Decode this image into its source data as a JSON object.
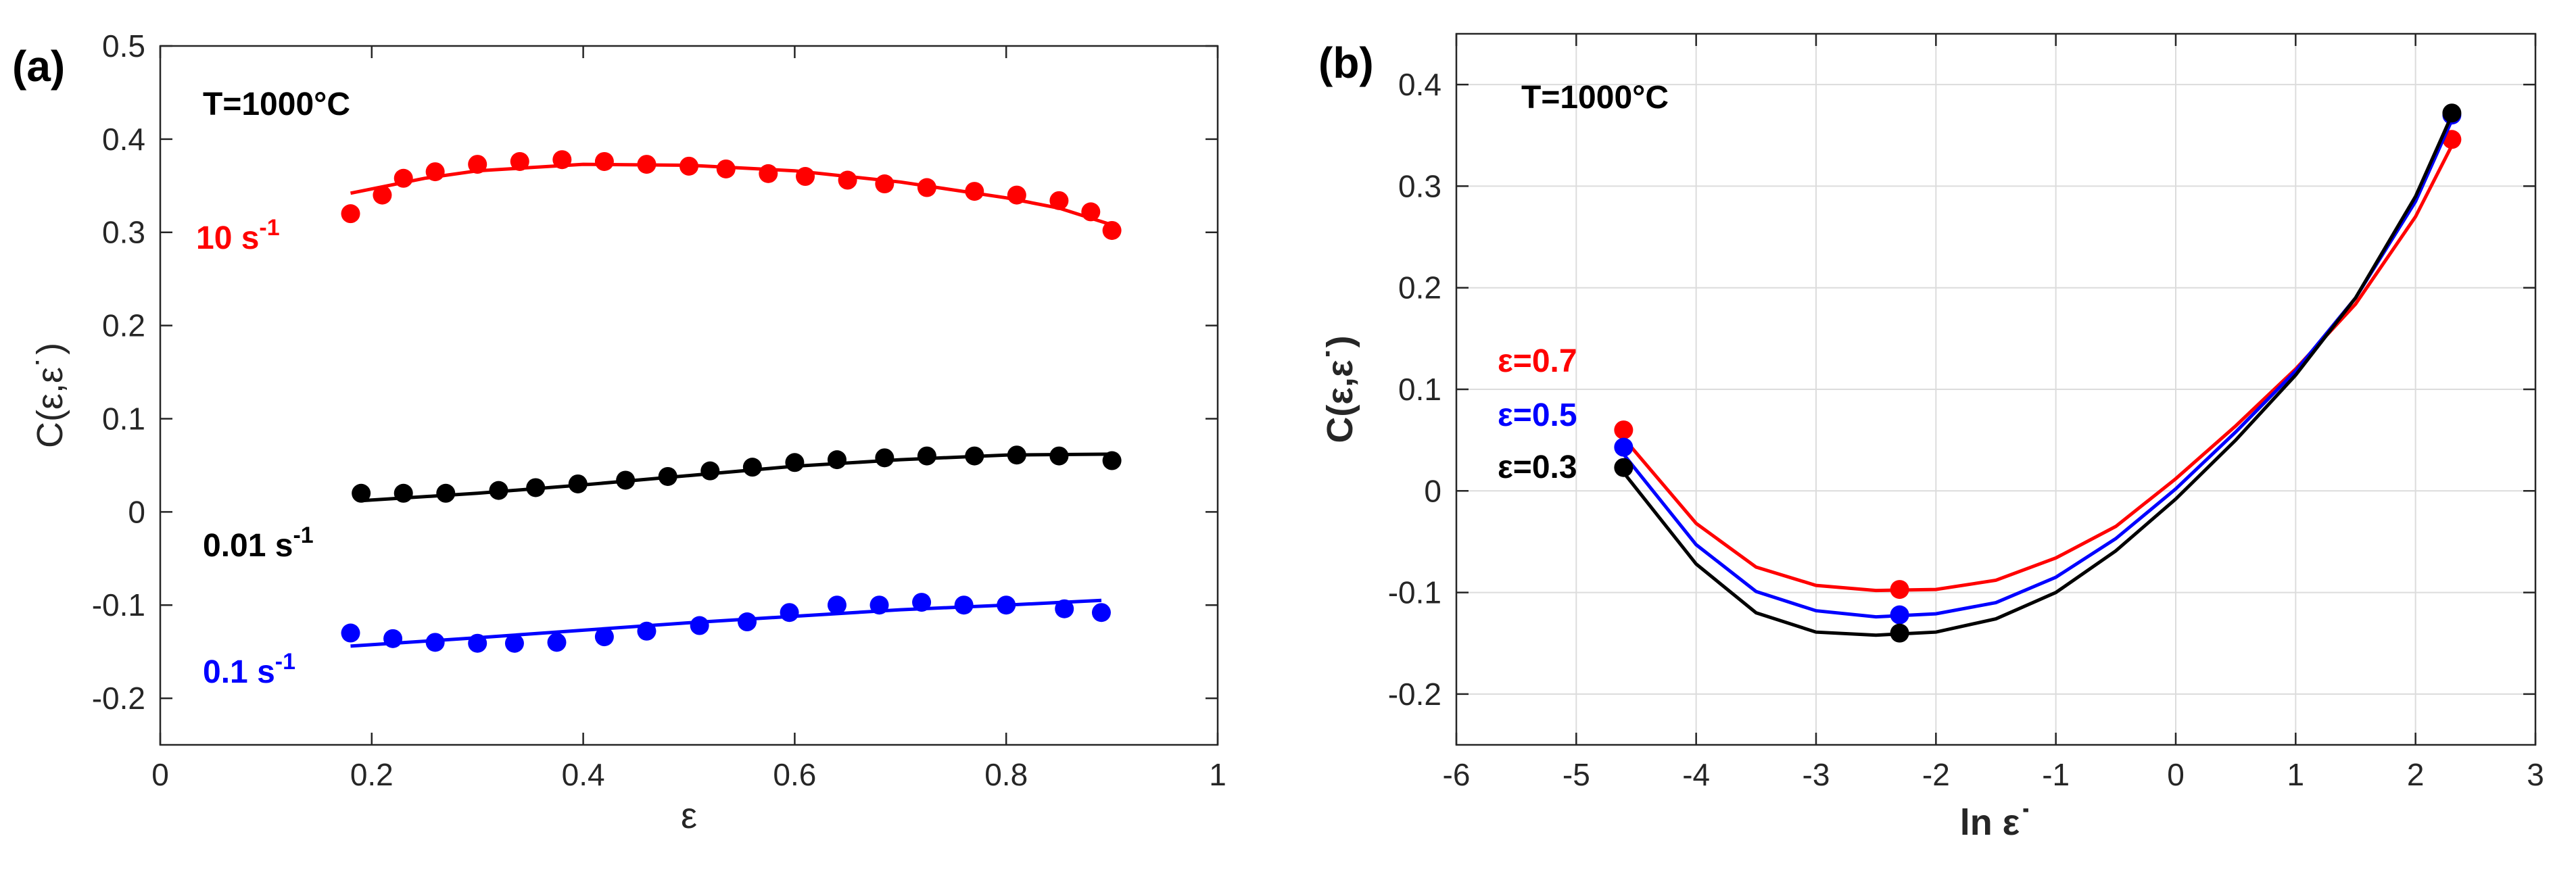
{
  "chart_data": [
    {
      "type": "line",
      "panel_label": "(a)",
      "annotation": "T=1000°C",
      "xlabel": "ε",
      "ylabel": "C(ε,ε˙)",
      "xlim": [
        0,
        1
      ],
      "ylim": [
        -0.25,
        0.5
      ],
      "xticks": [
        "0",
        "0.2",
        "0.4",
        "0.6",
        "0.8",
        "1"
      ],
      "yticks": [
        "-0.2",
        "-0.1",
        "0",
        "0.1",
        "0.2",
        "0.3",
        "0.4",
        "0.5"
      ],
      "grid": false,
      "x": [
        0.18,
        0.22,
        0.24,
        0.26,
        0.3,
        0.34,
        0.38,
        0.42,
        0.46,
        0.5,
        0.54,
        0.58,
        0.62,
        0.66,
        0.7,
        0.74,
        0.78,
        0.82,
        0.86,
        0.88,
        0.9
      ],
      "series": [
        {
          "name": "10 s-1",
          "label_main": "10 s",
          "label_sup": "-1",
          "color": "#ff0000",
          "points": [
            [
              0.18,
              0.32
            ],
            [
              0.21,
              0.34
            ],
            [
              0.23,
              0.358
            ],
            [
              0.26,
              0.365
            ],
            [
              0.3,
              0.373
            ],
            [
              0.34,
              0.376
            ],
            [
              0.38,
              0.378
            ],
            [
              0.42,
              0.376
            ],
            [
              0.46,
              0.373
            ],
            [
              0.5,
              0.371
            ],
            [
              0.535,
              0.368
            ],
            [
              0.575,
              0.363
            ],
            [
              0.61,
              0.36
            ],
            [
              0.65,
              0.356
            ],
            [
              0.685,
              0.352
            ],
            [
              0.725,
              0.348
            ],
            [
              0.77,
              0.344
            ],
            [
              0.81,
              0.34
            ],
            [
              0.85,
              0.334
            ],
            [
              0.88,
              0.322
            ],
            [
              0.9,
              0.302
            ]
          ],
          "fit": [
            [
              0.18,
              0.342
            ],
            [
              0.25,
              0.358
            ],
            [
              0.3,
              0.366
            ],
            [
              0.4,
              0.373
            ],
            [
              0.5,
              0.372
            ],
            [
              0.6,
              0.366
            ],
            [
              0.7,
              0.354
            ],
            [
              0.8,
              0.337
            ],
            [
              0.85,
              0.326
            ],
            [
              0.9,
              0.308
            ]
          ]
        },
        {
          "name": "0.01 s-1",
          "label_main": "0.01 s",
          "label_sup": "-1",
          "color": "#000000",
          "points": [
            [
              0.19,
              0.02
            ],
            [
              0.23,
              0.02
            ],
            [
              0.27,
              0.02
            ],
            [
              0.32,
              0.023
            ],
            [
              0.355,
              0.026
            ],
            [
              0.395,
              0.03
            ],
            [
              0.44,
              0.034
            ],
            [
              0.48,
              0.038
            ],
            [
              0.52,
              0.044
            ],
            [
              0.56,
              0.048
            ],
            [
              0.6,
              0.053
            ],
            [
              0.64,
              0.056
            ],
            [
              0.685,
              0.058
            ],
            [
              0.725,
              0.06
            ],
            [
              0.77,
              0.06
            ],
            [
              0.81,
              0.061
            ],
            [
              0.85,
              0.06
            ],
            [
              0.9,
              0.055
            ]
          ],
          "fit": [
            [
              0.19,
              0.012
            ],
            [
              0.3,
              0.02
            ],
            [
              0.4,
              0.029
            ],
            [
              0.5,
              0.039
            ],
            [
              0.6,
              0.049
            ],
            [
              0.7,
              0.056
            ],
            [
              0.8,
              0.061
            ],
            [
              0.9,
              0.062
            ]
          ]
        },
        {
          "name": "0.1 s-1",
          "label_main": "0.1 s",
          "label_sup": "-1",
          "color": "#0000ff",
          "points": [
            [
              0.18,
              -0.13
            ],
            [
              0.22,
              -0.136
            ],
            [
              0.26,
              -0.14
            ],
            [
              0.3,
              -0.141
            ],
            [
              0.335,
              -0.141
            ],
            [
              0.375,
              -0.14
            ],
            [
              0.42,
              -0.134
            ],
            [
              0.46,
              -0.128
            ],
            [
              0.51,
              -0.122
            ],
            [
              0.555,
              -0.118
            ],
            [
              0.595,
              -0.108
            ],
            [
              0.64,
              -0.1
            ],
            [
              0.68,
              -0.1
            ],
            [
              0.72,
              -0.097
            ],
            [
              0.76,
              -0.1
            ],
            [
              0.8,
              -0.1
            ],
            [
              0.855,
              -0.104
            ],
            [
              0.89,
              -0.108
            ]
          ],
          "fit": [
            [
              0.18,
              -0.144
            ],
            [
              0.3,
              -0.135
            ],
            [
              0.4,
              -0.127
            ],
            [
              0.5,
              -0.119
            ],
            [
              0.6,
              -0.112
            ],
            [
              0.7,
              -0.105
            ],
            [
              0.8,
              -0.1
            ],
            [
              0.89,
              -0.095
            ]
          ]
        }
      ]
    },
    {
      "type": "line",
      "panel_label": "(b)",
      "annotation": "T=1000°C",
      "xlabel": "ln ε˙",
      "ylabel": "C(ε,ε˙)",
      "xlim": [
        -6,
        3
      ],
      "ylim": [
        -0.25,
        0.45
      ],
      "xticks": [
        "-6",
        "-5",
        "-4",
        "-3",
        "-2",
        "-1",
        "0",
        "1",
        "2",
        "3"
      ],
      "yticks": [
        "-0.2",
        "-0.1",
        "0",
        "0.1",
        "0.2",
        "0.3",
        "0.4"
      ],
      "grid": true,
      "series": [
        {
          "name": "ε=0.7",
          "color": "#ff0000",
          "points": [
            [
              -4.605,
              0.06
            ],
            [
              -2.303,
              -0.097
            ],
            [
              2.303,
              0.346
            ]
          ],
          "fit": [
            [
              -4.605,
              0.052
            ],
            [
              -4.0,
              -0.032
            ],
            [
              -3.5,
              -0.075
            ],
            [
              -3.0,
              -0.093
            ],
            [
              -2.5,
              -0.098
            ],
            [
              -2.0,
              -0.097
            ],
            [
              -1.5,
              -0.088
            ],
            [
              -1.0,
              -0.066
            ],
            [
              -0.5,
              -0.035
            ],
            [
              0.0,
              0.012
            ],
            [
              0.5,
              0.064
            ],
            [
              1.0,
              0.12
            ],
            [
              1.5,
              0.184
            ],
            [
              2.0,
              0.27
            ],
            [
              2.303,
              0.34
            ]
          ]
        },
        {
          "name": "ε=0.5",
          "color": "#0000ff",
          "points": [
            [
              -4.605,
              0.043
            ],
            [
              -2.303,
              -0.122
            ],
            [
              2.303,
              0.37
            ]
          ],
          "fit": [
            [
              -4.605,
              0.036
            ],
            [
              -4.0,
              -0.053
            ],
            [
              -3.5,
              -0.099
            ],
            [
              -3.0,
              -0.118
            ],
            [
              -2.5,
              -0.124
            ],
            [
              -2.0,
              -0.121
            ],
            [
              -1.5,
              -0.11
            ],
            [
              -1.0,
              -0.085
            ],
            [
              -0.5,
              -0.047
            ],
            [
              0.0,
              0.002
            ],
            [
              0.5,
              0.058
            ],
            [
              1.0,
              0.118
            ],
            [
              1.5,
              0.19
            ],
            [
              2.0,
              0.285
            ],
            [
              2.303,
              0.365
            ]
          ]
        },
        {
          "name": "ε=0.3",
          "color": "#000000",
          "points": [
            [
              -4.605,
              0.023
            ],
            [
              -2.303,
              -0.14
            ],
            [
              2.303,
              0.372
            ]
          ],
          "fit": [
            [
              -4.605,
              0.018
            ],
            [
              -4.0,
              -0.072
            ],
            [
              -3.5,
              -0.12
            ],
            [
              -3.0,
              -0.139
            ],
            [
              -2.5,
              -0.142
            ],
            [
              -2.0,
              -0.139
            ],
            [
              -1.5,
              -0.126
            ],
            [
              -1.0,
              -0.1
            ],
            [
              -0.5,
              -0.059
            ],
            [
              0.0,
              -0.008
            ],
            [
              0.5,
              0.05
            ],
            [
              1.0,
              0.114
            ],
            [
              1.5,
              0.19
            ],
            [
              2.0,
              0.29
            ],
            [
              2.303,
              0.37
            ]
          ]
        }
      ]
    }
  ]
}
